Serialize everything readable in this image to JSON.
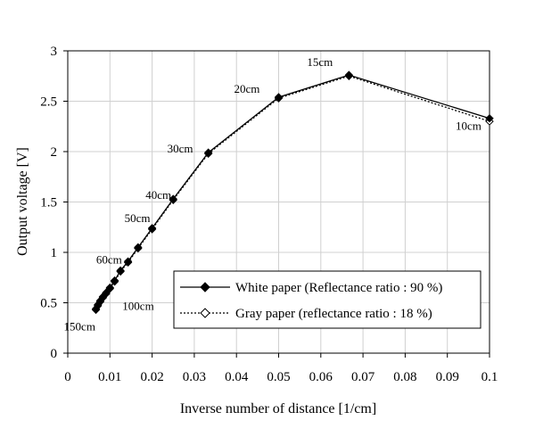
{
  "chart_data": {
    "type": "line",
    "title": "",
    "xlabel": "Inverse number of distance [1/cm]",
    "ylabel": "Output voltage [V]",
    "xlim": [
      0,
      0.1
    ],
    "ylim": [
      0,
      3
    ],
    "x_ticks": [
      0,
      0.01,
      0.02,
      0.03,
      0.04,
      0.05,
      0.06,
      0.07,
      0.08,
      0.09,
      0.1
    ],
    "x_tick_labels": [
      "0",
      "0.01",
      "0.02",
      "0.03",
      "0.04",
      "0.05",
      "0.06",
      "0.07",
      "0.08",
      "0.09",
      "0.1"
    ],
    "y_ticks": [
      0,
      0.5,
      1,
      1.5,
      2,
      2.5,
      3
    ],
    "y_tick_labels": [
      "0",
      "0.5",
      "1",
      "1.5",
      "2",
      "2.5",
      "3"
    ],
    "grid": true,
    "legend_position": "lower-right",
    "series": [
      {
        "name": "White paper (Reflectance ratio : 90 %)",
        "marker": "filled-diamond",
        "line": "solid",
        "color": "#000000",
        "x": [
          0.00667,
          0.00714,
          0.00769,
          0.00833,
          0.00909,
          0.01,
          0.01111,
          0.0125,
          0.01429,
          0.01667,
          0.02,
          0.025,
          0.03333,
          0.05,
          0.06667,
          0.1
        ],
        "y": [
          0.44,
          0.48,
          0.52,
          0.56,
          0.6,
          0.65,
          0.72,
          0.82,
          0.91,
          1.05,
          1.24,
          1.53,
          1.99,
          2.54,
          2.76,
          2.33
        ]
      },
      {
        "name": "Gray paper (reflectance ratio : 18 %)",
        "marker": "open-diamond",
        "line": "dotted",
        "color": "#000000",
        "x": [
          0.00667,
          0.00714,
          0.00769,
          0.00833,
          0.00909,
          0.01,
          0.01111,
          0.0125,
          0.01429,
          0.01667,
          0.02,
          0.025,
          0.03333,
          0.05,
          0.06667,
          0.1
        ],
        "y": [
          0.43,
          0.47,
          0.51,
          0.55,
          0.59,
          0.64,
          0.71,
          0.81,
          0.9,
          1.04,
          1.23,
          1.52,
          1.98,
          2.53,
          2.75,
          2.3
        ]
      }
    ],
    "annotations": [
      {
        "text": "150cm",
        "x": 0.00667,
        "y": 0.44
      },
      {
        "text": "100cm",
        "x": 0.01,
        "y": 0.65
      },
      {
        "text": "60cm",
        "x": 0.01667,
        "y": 1.05
      },
      {
        "text": "50cm",
        "x": 0.02,
        "y": 1.24
      },
      {
        "text": "40cm",
        "x": 0.025,
        "y": 1.53
      },
      {
        "text": "30cm",
        "x": 0.03333,
        "y": 1.99
      },
      {
        "text": "20cm",
        "x": 0.05,
        "y": 2.54
      },
      {
        "text": "15cm",
        "x": 0.06667,
        "y": 2.76
      },
      {
        "text": "10cm",
        "x": 0.1,
        "y": 2.33
      }
    ]
  }
}
